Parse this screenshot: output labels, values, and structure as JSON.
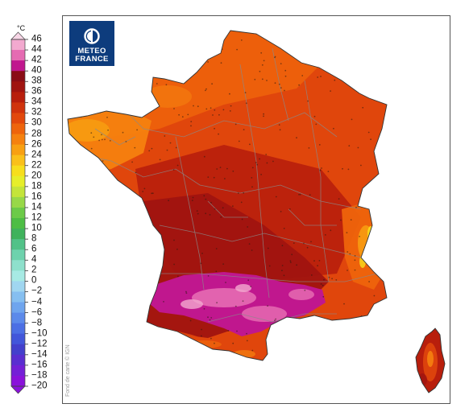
{
  "legend": {
    "unit": "°C",
    "ticks": [
      "46",
      "44",
      "42",
      "40",
      "38",
      "36",
      "34",
      "32",
      "30",
      "28",
      "26",
      "24",
      "22",
      "20",
      "18",
      "16",
      "14",
      "12",
      "10",
      "8",
      "6",
      "4",
      "2",
      "0",
      "−2",
      "−4",
      "−6",
      "−8",
      "−10",
      "−12",
      "−14",
      "−16",
      "−18",
      "−20"
    ],
    "colors": {
      "46": "#f7d6e6",
      "44": "#f2a9cf",
      "42": "#e56bb2",
      "40": "#c0178e",
      "38": "#8a0d16",
      "36": "#a01410",
      "34": "#b81e0c",
      "32": "#d0330c",
      "30": "#e2480c",
      "28": "#ee640c",
      "26": "#f5810f",
      "24": "#f8a012",
      "22": "#fac01a",
      "20": "#f7de1d",
      "18": "#e6ee2a",
      "16": "#c4e43a",
      "14": "#98d848",
      "12": "#6cca48",
      "10": "#4dbd44",
      "8": "#3fb25c",
      "6": "#52c288",
      "4": "#6ed2ad",
      "2": "#8ee0cc",
      "0": "#a7eae4",
      "-2": "#a0d6f0",
      "-4": "#86bff0",
      "-6": "#6fa5ee",
      "-8": "#5c8aea",
      "-10": "#4c6fe4",
      "-12": "#4256da",
      "-14": "#4340cc",
      "-16": "#5a2ed0",
      "-18": "#7420d6",
      "-20": "#8a12da"
    }
  },
  "map": {
    "logo_line1": "METEO",
    "logo_line2": "FRANCE",
    "credit": "Fond de carte © IGN",
    "colors": {
      "sea": "#ffffff",
      "base": "#e0460c",
      "coast_north": "#ee640c",
      "brittany": "#f5810f",
      "brittany_tip": "#f8a012",
      "center_dark": "#b81e0c",
      "south_dark": "#a01410",
      "purple": "#c0178e",
      "pink": "#e56bb2",
      "light_pink": "#f2a9cf",
      "alps": "#ee640c",
      "alps_high": "#f7de1d",
      "borders": "#8a8a8a",
      "logo_bg": "#0d3c7d"
    }
  }
}
